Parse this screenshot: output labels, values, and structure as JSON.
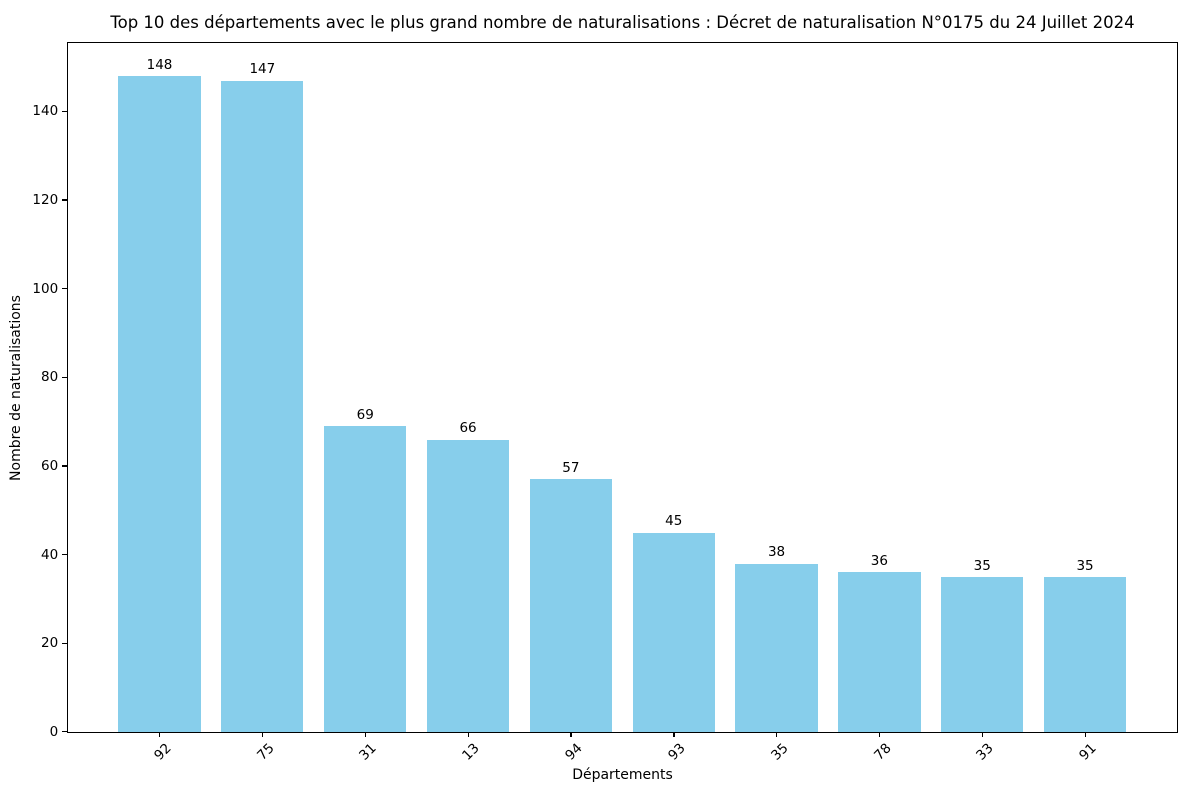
{
  "chart_data": {
    "type": "bar",
    "title": "Top 10 des départements avec le plus grand nombre de naturalisations : Décret de naturalisation N°0175 du 24 Juillet 2024",
    "xlabel": "Départements",
    "ylabel": "Nombre de naturalisations",
    "categories": [
      "92",
      "75",
      "31",
      "13",
      "94",
      "93",
      "35",
      "78",
      "33",
      "91"
    ],
    "values": [
      148,
      147,
      69,
      66,
      57,
      45,
      38,
      36,
      35,
      35
    ],
    "yticks": [
      0,
      20,
      40,
      60,
      80,
      100,
      120,
      140
    ],
    "ylim": [
      0,
      155.4
    ],
    "bar_color": "#87CEEB",
    "spine_color": "#000000",
    "text_color": "#000000",
    "background_color": "#ffffff",
    "grid": false,
    "legend": null,
    "x_tick_rotation": 45
  }
}
